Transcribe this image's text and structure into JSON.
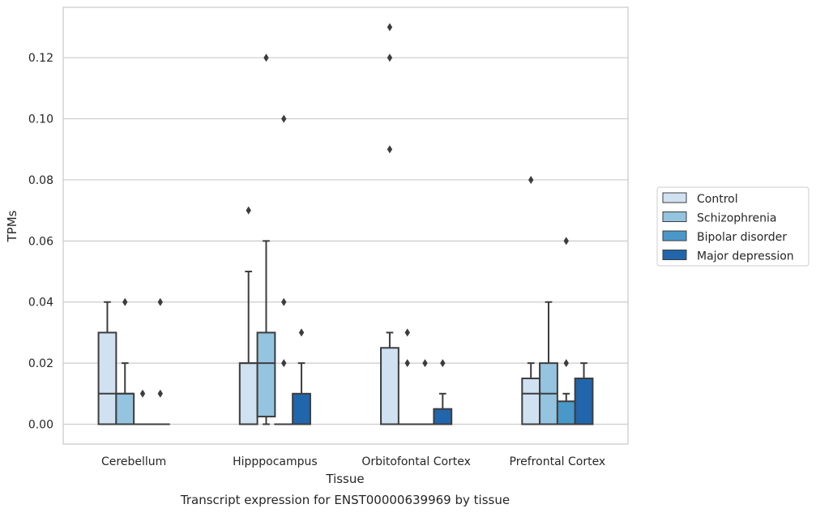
{
  "chart_data": {
    "type": "boxplot",
    "title": "Transcript expression for ENST00000639969 by tissue",
    "xlabel": "Tissue",
    "ylabel": "TPMs",
    "ylim": [
      -0.0065,
      0.1365
    ],
    "yticks": [
      0.0,
      0.02,
      0.04,
      0.06,
      0.08,
      0.1,
      0.12
    ],
    "ytick_labels": [
      "0.00",
      "0.02",
      "0.04",
      "0.06",
      "0.08",
      "0.10",
      "0.12"
    ],
    "grid": "horizontal",
    "legend_position": "right",
    "categories": [
      "Cerebellum",
      "Hipppocampus",
      "Orbitofontal Cortex",
      "Prefrontal Cortex"
    ],
    "series": [
      {
        "name": "Control",
        "color": "#d0e1f2",
        "boxes": [
          {
            "min": 0.0,
            "q1": 0.0,
            "median": 0.01,
            "q3": 0.03,
            "max": 0.04,
            "outliers": []
          },
          {
            "min": 0.0,
            "q1": 0.0,
            "median": 0.02,
            "q3": 0.02,
            "max": 0.05,
            "outliers": [
              0.07
            ]
          },
          {
            "min": 0.0,
            "q1": 0.0,
            "median": 0.0,
            "q3": 0.025,
            "max": 0.03,
            "outliers": [
              0.09,
              0.12,
              0.13
            ]
          },
          {
            "min": 0.0,
            "q1": 0.0,
            "median": 0.01,
            "q3": 0.015,
            "max": 0.02,
            "outliers": [
              0.08
            ]
          }
        ]
      },
      {
        "name": "Schizophrenia",
        "color": "#94c4df",
        "boxes": [
          {
            "min": 0.0,
            "q1": 0.0,
            "median": 0.01,
            "q3": 0.01,
            "max": 0.02,
            "outliers": [
              0.04
            ]
          },
          {
            "min": 0.0,
            "q1": 0.0025,
            "median": 0.02,
            "q3": 0.03,
            "max": 0.06,
            "outliers": [
              0.12
            ]
          },
          {
            "min": 0.0,
            "q1": 0.0,
            "median": 0.0,
            "q3": 0.0,
            "max": 0.0,
            "outliers": [
              0.02,
              0.03
            ]
          },
          {
            "min": 0.0,
            "q1": 0.0,
            "median": 0.01,
            "q3": 0.02,
            "max": 0.04,
            "outliers": []
          }
        ]
      },
      {
        "name": "Bipolar disorder",
        "color": "#4a98c9",
        "boxes": [
          {
            "min": 0.0,
            "q1": 0.0,
            "median": 0.0,
            "q3": 0.0,
            "max": 0.0,
            "outliers": [
              0.01
            ]
          },
          {
            "min": 0.0,
            "q1": 0.0,
            "median": 0.0,
            "q3": 0.0,
            "max": 0.0,
            "outliers": [
              0.02,
              0.04,
              0.1
            ]
          },
          {
            "min": 0.0,
            "q1": 0.0,
            "median": 0.0,
            "q3": 0.0,
            "max": 0.0,
            "outliers": [
              0.02
            ]
          },
          {
            "min": 0.0,
            "q1": 0.0,
            "median": 0.0,
            "q3": 0.0075,
            "max": 0.01,
            "outliers": [
              0.02,
              0.06
            ]
          }
        ]
      },
      {
        "name": "Major depression",
        "color": "#2166ac",
        "boxes": [
          {
            "min": 0.0,
            "q1": 0.0,
            "median": 0.0,
            "q3": 0.0,
            "max": 0.0,
            "outliers": [
              0.01,
              0.04
            ]
          },
          {
            "min": 0.0,
            "q1": 0.0,
            "median": 0.0,
            "q3": 0.01,
            "max": 0.02,
            "outliers": [
              0.03
            ]
          },
          {
            "min": 0.0,
            "q1": 0.0,
            "median": 0.0,
            "q3": 0.005,
            "max": 0.01,
            "outliers": [
              0.02
            ]
          },
          {
            "min": 0.0,
            "q1": 0.0,
            "median": 0.0,
            "q3": 0.015,
            "max": 0.02,
            "outliers": []
          }
        ]
      }
    ]
  }
}
